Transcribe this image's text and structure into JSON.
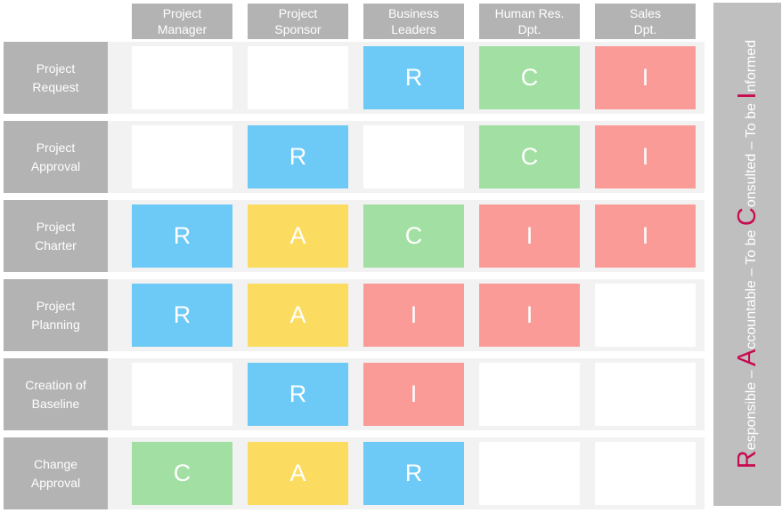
{
  "matrix": {
    "column_headers": [
      "Project\nManager",
      "Project\nSponsor",
      "Business\nLeaders",
      "Human Res.\nDpt.",
      "Sales\nDpt."
    ],
    "rows": [
      {
        "label": "Project\nRequest",
        "cells": [
          "",
          "",
          "R",
          "C",
          "I"
        ]
      },
      {
        "label": "Project\nApproval",
        "cells": [
          "",
          "R",
          "",
          "C",
          "I"
        ]
      },
      {
        "label": "Project\nCharter",
        "cells": [
          "R",
          "A",
          "C",
          "I",
          "I"
        ]
      },
      {
        "label": "Project\nPlanning",
        "cells": [
          "R",
          "A",
          "I",
          "I",
          ""
        ]
      },
      {
        "label": "Creation of\nBaseline",
        "cells": [
          "",
          "R",
          "I",
          "",
          ""
        ]
      },
      {
        "label": "Change\nApproval",
        "cells": [
          "C",
          "A",
          "R",
          "",
          ""
        ]
      }
    ]
  },
  "legend": {
    "parts": [
      {
        "big": "R",
        "small": "esponsible – "
      },
      {
        "big": "A",
        "small": "ccountable – To be "
      },
      {
        "big": "C",
        "small": "onsulted – To be "
      },
      {
        "big": "I",
        "small": "nformed"
      }
    ]
  },
  "colors": {
    "R": "#6DC9F6",
    "A": "#FBDC60",
    "C": "#A2DFA2",
    "I": "#FB9B98",
    "empty": "#FFFFFF",
    "header_bg": "#B3B3B3",
    "row_strip_bg": "#F2F2F2",
    "legend_bg": "#BFBFBF",
    "legend_accent": "#C80A50",
    "text_on_gray": "#FFFFFF"
  }
}
